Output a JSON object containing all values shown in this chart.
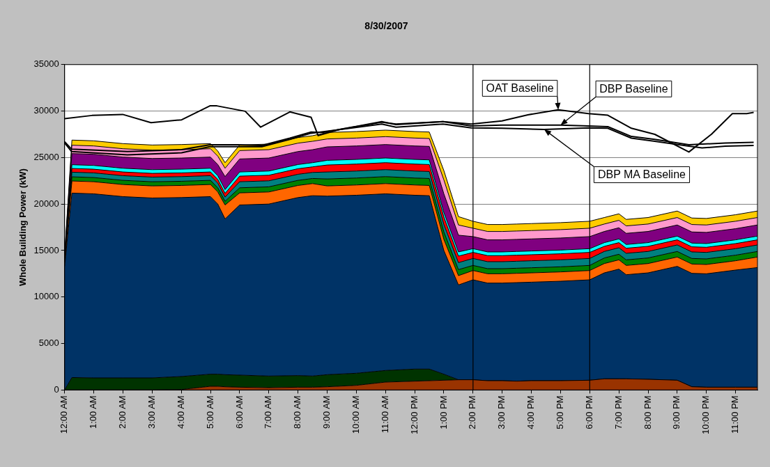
{
  "chart_data": {
    "type": "area",
    "title": "8/30/2007",
    "ylabel": "Whole Building Power (kW)",
    "stacked": true,
    "grid": "y",
    "marker": "none",
    "line_style": "solid",
    "x": [
      0,
      0.25,
      1,
      2,
      3,
      4,
      5,
      5.25,
      5.5,
      6,
      7,
      8,
      8.5,
      9,
      10,
      11,
      12,
      12.5,
      13,
      13.5,
      14,
      14.5,
      15,
      15.5,
      16,
      17,
      18,
      18.5,
      19,
      19.25,
      20,
      21,
      21.5,
      22,
      23,
      23.75
    ],
    "xlim": [
      0,
      23.75
    ],
    "xticks": [
      {
        "value": 0,
        "label": "12:00 AM"
      },
      {
        "value": 1,
        "label": "1:00 AM"
      },
      {
        "value": 2,
        "label": "2:00 AM"
      },
      {
        "value": 3,
        "label": "3:00 AM"
      },
      {
        "value": 4,
        "label": "4:00 AM"
      },
      {
        "value": 5,
        "label": "5:00 AM"
      },
      {
        "value": 6,
        "label": "6:00 AM"
      },
      {
        "value": 7,
        "label": "7:00 AM"
      },
      {
        "value": 8,
        "label": "8:00 AM"
      },
      {
        "value": 9,
        "label": "9:00 AM"
      },
      {
        "value": 10,
        "label": "10:00 AM"
      },
      {
        "value": 11,
        "label": "11:00 AM"
      },
      {
        "value": 12,
        "label": "12:00 PM"
      },
      {
        "value": 13,
        "label": "1:00 PM"
      },
      {
        "value": 14,
        "label": "2:00 PM"
      },
      {
        "value": 15,
        "label": "3:00 PM"
      },
      {
        "value": 16,
        "label": "4:00 PM"
      },
      {
        "value": 17,
        "label": "5:00 PM"
      },
      {
        "value": 18,
        "label": "6:00 PM"
      },
      {
        "value": 19,
        "label": "7:00 PM"
      },
      {
        "value": 20,
        "label": "8:00 PM"
      },
      {
        "value": 21,
        "label": "9:00 PM"
      },
      {
        "value": 22,
        "label": "10:00 PM"
      },
      {
        "value": 23,
        "label": "11:00 PM"
      }
    ],
    "ylim": [
      0,
      35000
    ],
    "yticks": [
      0,
      5000,
      10000,
      15000,
      20000,
      25000,
      30000,
      35000
    ],
    "series": [
      {
        "type": "area",
        "color": "#993300",
        "values": [
          0,
          0,
          0,
          0,
          0,
          50,
          400,
          400,
          350,
          300,
          250,
          300,
          300,
          350,
          500,
          850,
          950,
          1000,
          1050,
          1100,
          1100,
          1000,
          1000,
          950,
          1000,
          1000,
          1050,
          1200,
          1200,
          1200,
          1150,
          1050,
          350,
          300,
          300,
          300
        ]
      },
      {
        "type": "area",
        "color": "#003300",
        "values": [
          0,
          1340,
          1300,
          1300,
          1300,
          1400,
          1300,
          1300,
          1300,
          1300,
          1250,
          1250,
          1200,
          1300,
          1300,
          1250,
          1300,
          1250,
          650,
          0,
          0,
          0,
          0,
          0,
          0,
          0,
          0,
          0,
          0,
          0,
          0,
          0,
          0,
          0,
          0,
          0
        ]
      },
      {
        "type": "area",
        "color": "#003366",
        "values": [
          13300,
          19840,
          19800,
          19500,
          19350,
          19250,
          19100,
          18300,
          16750,
          18300,
          18500,
          19150,
          19400,
          19200,
          19150,
          19000,
          18700,
          18650,
          13300,
          10200,
          10750,
          10500,
          10500,
          10600,
          10600,
          10700,
          10800,
          11400,
          11800,
          11200,
          11450,
          12250,
          12200,
          12200,
          12600,
          12870
        ]
      },
      {
        "type": "area",
        "color": "#ff6600",
        "values": [
          400,
          1300,
          1300,
          1300,
          1300,
          1300,
          1300,
          1300,
          1500,
          1300,
          1300,
          1300,
          1300,
          1100,
          1100,
          1100,
          1100,
          1100,
          1200,
          1000,
          1000,
          1000,
          1000,
          1000,
          1000,
          1000,
          1000,
          1000,
          1000,
          1000,
          1000,
          1000,
          1000,
          1000,
          1000,
          1130
        ]
      },
      {
        "type": "area",
        "color": "#008000",
        "values": [
          100,
          450,
          450,
          450,
          450,
          450,
          450,
          450,
          400,
          550,
          550,
          550,
          550,
          750,
          750,
          750,
          750,
          750,
          800,
          650,
          550,
          550,
          550,
          550,
          550,
          550,
          550,
          600,
          600,
          600,
          600,
          600,
          600,
          600,
          600,
          600
        ]
      },
      {
        "type": "area",
        "color": "#008080",
        "values": [
          100,
          500,
          500,
          500,
          500,
          500,
          500,
          500,
          450,
          650,
          650,
          650,
          650,
          750,
          750,
          750,
          750,
          750,
          800,
          750,
          750,
          750,
          750,
          750,
          750,
          750,
          750,
          700,
          700,
          700,
          700,
          700,
          700,
          700,
          700,
          700
        ]
      },
      {
        "type": "area",
        "color": "#ff0000",
        "values": [
          100,
          400,
          400,
          400,
          400,
          400,
          400,
          400,
          400,
          600,
          600,
          600,
          600,
          750,
          750,
          750,
          750,
          750,
          800,
          700,
          650,
          650,
          650,
          650,
          650,
          650,
          650,
          550,
          550,
          550,
          550,
          550,
          550,
          550,
          550,
          550
        ]
      },
      {
        "type": "area",
        "color": "#00ffff",
        "values": [
          100,
          400,
          400,
          400,
          400,
          400,
          400,
          400,
          400,
          450,
          450,
          450,
          450,
          500,
          500,
          500,
          500,
          500,
          500,
          450,
          400,
          400,
          400,
          400,
          400,
          400,
          400,
          400,
          400,
          400,
          400,
          400,
          400,
          400,
          400,
          400
        ]
      },
      {
        "type": "area",
        "color": "#800080",
        "values": [
          300,
          1200,
          1200,
          1200,
          1200,
          1200,
          1200,
          1200,
          1400,
          1400,
          1400,
          1400,
          1400,
          1450,
          1450,
          1450,
          1450,
          1450,
          2000,
          1800,
          1300,
          1300,
          1300,
          1300,
          1300,
          1300,
          1300,
          1200,
          1200,
          1200,
          1200,
          1200,
          1200,
          1200,
          1200,
          1200
        ]
      },
      {
        "type": "area",
        "color": "#ff99cc",
        "values": [
          100,
          900,
          900,
          900,
          900,
          900,
          900,
          900,
          900,
          900,
          900,
          900,
          900,
          850,
          850,
          850,
          850,
          850,
          1500,
          1100,
          900,
          900,
          900,
          900,
          900,
          900,
          900,
          800,
          800,
          800,
          800,
          800,
          800,
          800,
          800,
          800
        ]
      },
      {
        "type": "area",
        "color": "#ffcc00",
        "values": [
          100,
          550,
          550,
          550,
          550,
          550,
          550,
          550,
          600,
          600,
          600,
          600,
          600,
          700,
          700,
          700,
          700,
          700,
          1000,
          900,
          750,
          750,
          750,
          750,
          750,
          750,
          750,
          700,
          700,
          700,
          700,
          700,
          700,
          700,
          700,
          700
        ]
      },
      {
        "type": "line",
        "color": "#000000",
        "x": [
          0,
          0.94,
          1.99,
          2.96,
          4.01,
          4.98,
          5.22,
          6.19,
          6.72,
          7.72,
          8.45,
          8.69,
          9.42,
          10.87,
          11.36,
          12.97,
          13.94,
          14.99,
          15.88,
          16.92,
          17.96,
          18.62,
          19.43,
          20.23,
          21.4,
          22.17,
          22.89,
          23.38,
          23.62
        ],
        "values": [
          29190,
          29530,
          29640,
          28750,
          29060,
          30560,
          30560,
          29980,
          28270,
          29910,
          29330,
          27360,
          28020,
          28860,
          28540,
          28860,
          28600,
          28940,
          29600,
          30130,
          29730,
          29550,
          28150,
          27500,
          25600,
          27500,
          29730,
          29730,
          29860
        ]
      },
      {
        "type": "line",
        "color": "#000000",
        "x": [
          0,
          0.24,
          2.15,
          4.01,
          4.98,
          5.95,
          6.76,
          7.72,
          8.45,
          8.85,
          10.87,
          11.36,
          12.97,
          13.94,
          14.99,
          17.0,
          17.96,
          18.62,
          19.43,
          20.23,
          21.4,
          22.65,
          23.62
        ],
        "values": [
          26700,
          25900,
          25640,
          25850,
          26380,
          26380,
          26300,
          27090,
          27750,
          27700,
          28800,
          28600,
          28860,
          28400,
          28490,
          28490,
          28400,
          28320,
          27270,
          26960,
          26380,
          26560,
          26640
        ]
      },
      {
        "type": "line",
        "color": "#000000",
        "x": [
          0,
          0.24,
          2.15,
          4.01,
          4.98,
          6.76,
          7.72,
          8.45,
          10.87,
          11.36,
          12.97,
          13.94,
          14.99,
          16.44,
          17.96,
          18.62,
          19.43,
          20.23,
          21.4,
          21.85,
          22.65,
          23.62
        ],
        "values": [
          26580,
          25640,
          25300,
          25510,
          26170,
          26170,
          26960,
          27620,
          28600,
          28270,
          28600,
          28200,
          28150,
          28020,
          28200,
          28150,
          27090,
          26750,
          26220,
          26040,
          26220,
          26300
        ]
      }
    ],
    "ref_lines": [
      {
        "axis": "x",
        "value": 14,
        "color": "#000000"
      },
      {
        "axis": "x",
        "value": 18,
        "color": "#000000"
      }
    ],
    "annotations": [
      {
        "text": "OAT Baseline",
        "x": 16.92,
        "y": 30130
      },
      {
        "text": "DBP Baseline",
        "x": 17.0,
        "y": 28490
      },
      {
        "text": "DBP MA Baseline",
        "x": 16.44,
        "y": 28020
      }
    ]
  }
}
